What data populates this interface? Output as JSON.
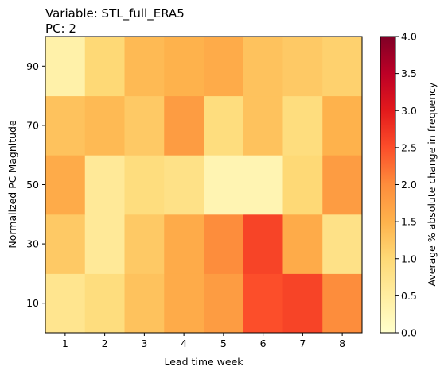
{
  "chart_data": {
    "type": "heatmap",
    "title_lines": [
      "Variable: STL_full_ERA5",
      "PC: 2"
    ],
    "xlabel": "Lead time week",
    "ylabel": "Normalized PC Magnitude",
    "x_categories": [
      "1",
      "2",
      "3",
      "4",
      "5",
      "6",
      "7",
      "8"
    ],
    "y_categories": [
      "10",
      "30",
      "50",
      "70",
      "90"
    ],
    "values": [
      [
        0.7,
        0.9,
        1.3,
        1.6,
        1.8,
        2.5,
        2.6,
        2.0
      ],
      [
        1.2,
        0.6,
        1.2,
        1.6,
        2.0,
        2.6,
        1.6,
        0.8
      ],
      [
        1.6,
        0.6,
        0.9,
        0.8,
        0.3,
        0.3,
        1.0,
        1.8
      ],
      [
        1.3,
        1.4,
        1.2,
        1.8,
        0.9,
        1.3,
        0.9,
        1.5
      ],
      [
        0.4,
        1.0,
        1.4,
        1.5,
        1.6,
        1.3,
        1.2,
        1.1
      ]
    ],
    "colorbar": {
      "label": "Average % absolute change in frequency",
      "range": [
        0,
        4
      ],
      "ticks": [
        "0.0",
        "0.5",
        "1.0",
        "1.5",
        "2.0",
        "2.5",
        "3.0",
        "3.5",
        "4.0"
      ],
      "colormap": "YlOrRd",
      "colors": [
        "#ffffcc",
        "#ffeda0",
        "#fed976",
        "#feb24c",
        "#fd8d3c",
        "#fc4e2a",
        "#e31a1c",
        "#bd0026",
        "#800026"
      ]
    },
    "grid": false
  }
}
